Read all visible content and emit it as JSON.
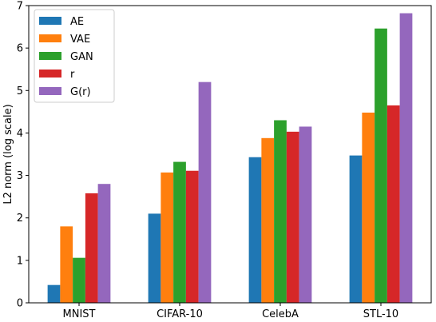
{
  "chart_data": {
    "type": "bar",
    "categories": [
      "MNIST",
      "CIFAR-10",
      "CelebA",
      "STL-10"
    ],
    "series": [
      {
        "name": "AE",
        "color": "#1f77b4",
        "values": [
          0.42,
          2.1,
          3.43,
          3.47
        ]
      },
      {
        "name": "VAE",
        "color": "#ff7f0e",
        "values": [
          1.8,
          3.07,
          3.88,
          4.48
        ]
      },
      {
        "name": "GAN",
        "color": "#2ca02c",
        "values": [
          1.06,
          3.32,
          4.3,
          6.46
        ]
      },
      {
        "name": "r",
        "color": "#d62728",
        "values": [
          2.58,
          3.11,
          4.03,
          4.65
        ]
      },
      {
        "name": "G(r)",
        "color": "#9467bd",
        "values": [
          2.8,
          5.2,
          4.15,
          6.82
        ]
      }
    ],
    "title": "",
    "xlabel": "",
    "ylabel": "L2 norm (log scale)",
    "ylim": [
      0,
      7
    ],
    "yticks": [
      0,
      1,
      2,
      3,
      4,
      5,
      6,
      7
    ],
    "grid": false,
    "legend_position": "top-left"
  }
}
